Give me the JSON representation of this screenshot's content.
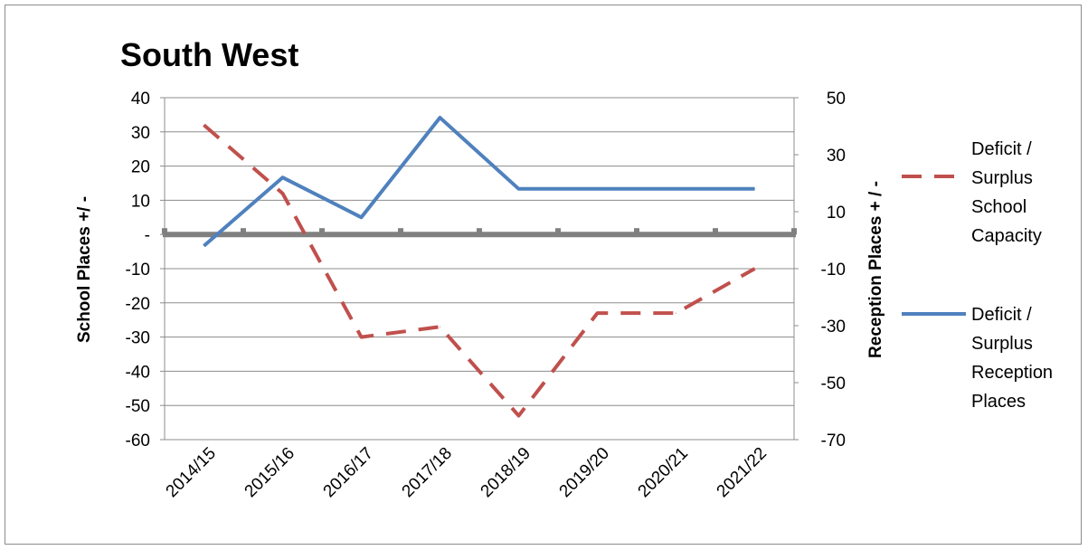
{
  "chart_data": {
    "type": "line",
    "title": "South West",
    "categories": [
      "2014/15",
      "2015/16",
      "2016/17",
      "2017/18",
      "2018/19",
      "2019/20",
      "2020/21",
      "2021/22"
    ],
    "y_left": {
      "label": "School Places +/ -",
      "range": [
        -60,
        40
      ],
      "ticks": [
        40,
        30,
        20,
        10,
        0,
        -10,
        -20,
        -30,
        -40,
        -50,
        -60
      ],
      "tick_labels": [
        "40",
        "30",
        "20",
        "10",
        "-",
        "-10",
        "-20",
        "-30",
        "-40",
        "-50",
        "-60"
      ]
    },
    "y_right": {
      "label": "Reception Places + / -",
      "range": [
        -70,
        50
      ],
      "ticks": [
        50,
        30,
        10,
        -10,
        -30,
        -50,
        -70
      ],
      "tick_labels": [
        "50",
        "30",
        "10",
        "-10",
        "-30",
        "-50",
        "-70"
      ]
    },
    "series": [
      {
        "name": "Deficit / Surplus School Capacity",
        "axis": "left",
        "color": "#c0504d",
        "dash": true,
        "values": [
          32,
          12,
          -30,
          -27,
          -53,
          -23,
          -23,
          -10
        ],
        "legend_lines": [
          "Deficit /",
          "Surplus",
          "School",
          "Capacity"
        ]
      },
      {
        "name": "Deficit / Surplus Reception Places",
        "axis": "right",
        "color": "#4f81bd",
        "dash": false,
        "values": [
          -2,
          22,
          8,
          43,
          18,
          18,
          18,
          18
        ],
        "legend_lines": [
          "Deficit /",
          "Surplus",
          "Reception",
          "Places"
        ]
      }
    ],
    "grid": true,
    "legend": "right"
  }
}
